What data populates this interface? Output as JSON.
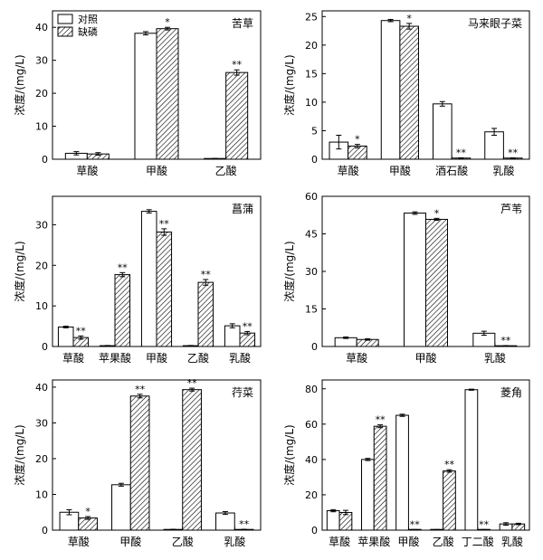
{
  "legend": {
    "control_label": "对照",
    "deficit_label": "缺磷"
  },
  "ylabel": "浓度/(mg/L)",
  "chart_data": [
    {
      "type": "bar",
      "title": "苦草",
      "ylim": [
        0,
        45
      ],
      "yticks": [
        0,
        10,
        20,
        30,
        40
      ],
      "categories": [
        "草酸",
        "甲酸",
        "乙酸"
      ],
      "series": [
        {
          "name": "对照",
          "values": [
            1.8,
            38.2,
            0.2
          ],
          "errors": [
            0.5,
            0.5,
            0.05
          ]
        },
        {
          "name": "缺磷",
          "values": [
            1.6,
            39.6,
            26.3
          ],
          "errors": [
            0.4,
            0.4,
            0.8
          ]
        }
      ],
      "significance": [
        "",
        "*",
        "**"
      ],
      "show_legend": true
    },
    {
      "type": "bar",
      "title": "马来眼子菜",
      "ylim": [
        0,
        26
      ],
      "yticks": [
        0,
        5,
        10,
        15,
        20,
        25
      ],
      "categories": [
        "草酸",
        "甲酸",
        "酒石酸",
        "乳酸"
      ],
      "series": [
        {
          "name": "对照",
          "values": [
            3.0,
            24.3,
            9.7,
            4.8
          ],
          "errors": [
            1.2,
            0.2,
            0.4,
            0.6
          ]
        },
        {
          "name": "缺磷",
          "values": [
            2.3,
            23.3,
            0.2,
            0.2
          ],
          "errors": [
            0.3,
            0.5,
            0.05,
            0.05
          ]
        }
      ],
      "significance": [
        "*",
        "*",
        "**",
        "**"
      ],
      "show_legend": false
    },
    {
      "type": "bar",
      "title": "菖蒲",
      "ylim": [
        0,
        37
      ],
      "yticks": [
        0,
        10,
        20,
        30
      ],
      "categories": [
        "草酸",
        "苹果酸",
        "甲酸",
        "乙酸",
        "乳酸"
      ],
      "series": [
        {
          "name": "对照",
          "values": [
            4.8,
            0.2,
            33.3,
            0.2,
            5.1
          ],
          "errors": [
            0.2,
            0.05,
            0.4,
            0.05,
            0.5
          ]
        },
        {
          "name": "缺磷",
          "values": [
            2.2,
            17.7,
            28.2,
            15.8,
            3.3
          ],
          "errors": [
            0.4,
            0.5,
            0.8,
            0.7,
            0.4
          ]
        }
      ],
      "significance": [
        "**",
        "**",
        "**",
        "**",
        "**"
      ],
      "show_legend": false
    },
    {
      "type": "bar",
      "title": "芦苇",
      "ylim": [
        0,
        60
      ],
      "yticks": [
        0,
        15,
        30,
        45,
        60
      ],
      "categories": [
        "草酸",
        "甲酸",
        "乳酸"
      ],
      "series": [
        {
          "name": "对照",
          "values": [
            3.5,
            53.3,
            5.3
          ],
          "errors": [
            0.3,
            0.5,
            0.8
          ]
        },
        {
          "name": "缺磷",
          "values": [
            2.8,
            50.8,
            0.3
          ],
          "errors": [
            0.3,
            0.4,
            0.05
          ]
        }
      ],
      "significance": [
        "",
        "*",
        "**"
      ],
      "show_legend": false
    },
    {
      "type": "bar",
      "title": "荇菜",
      "ylim": [
        0,
        42
      ],
      "yticks": [
        0,
        10,
        20,
        30,
        40
      ],
      "categories": [
        "草酸",
        "甲酸",
        "乙酸",
        "乳酸"
      ],
      "series": [
        {
          "name": "对照",
          "values": [
            5.0,
            12.7,
            0.2,
            4.8
          ],
          "errors": [
            0.7,
            0.4,
            0.05,
            0.4
          ]
        },
        {
          "name": "缺磷",
          "values": [
            3.4,
            37.5,
            39.3,
            0.2
          ],
          "errors": [
            0.4,
            0.5,
            0.4,
            0.05
          ]
        }
      ],
      "significance": [
        "*",
        "**",
        "**",
        "**"
      ],
      "show_legend": false
    },
    {
      "type": "bar",
      "title": "菱角",
      "ylim": [
        0,
        85
      ],
      "yticks": [
        0,
        20,
        40,
        60,
        80
      ],
      "categories": [
        "草酸",
        "苹果酸",
        "甲酸",
        "乙酸",
        "丁二酸",
        "乳酸"
      ],
      "series": [
        {
          "name": "对照",
          "values": [
            11.0,
            40.0,
            65.0,
            0.3,
            79.5,
            3.5
          ],
          "errors": [
            0.6,
            0.6,
            0.6,
            0.05,
            0.3,
            0.7
          ]
        },
        {
          "name": "缺磷",
          "values": [
            10.0,
            58.8,
            0.3,
            33.5,
            0.3,
            3.5
          ],
          "errors": [
            1.2,
            0.8,
            0.05,
            0.7,
            0.05,
            0.4
          ]
        }
      ],
      "significance": [
        "",
        "**",
        "**",
        "**",
        "**",
        ""
      ],
      "show_legend": false
    }
  ]
}
